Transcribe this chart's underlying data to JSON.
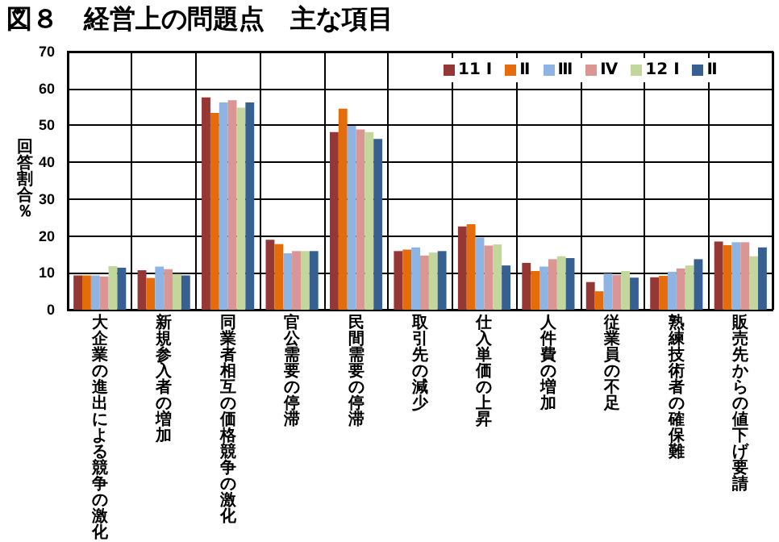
{
  "chart_data": {
    "type": "bar",
    "title": "図８　経営上の問題点　主な項目",
    "ylabel": "回答割合％",
    "categories": [
      "大企業の進出による競争の激化",
      "新規参入者の増加",
      "同業者相互の価格競争の激化",
      "官公需要の停滞",
      "民間需要の停滞",
      "取引先の減少",
      "仕入単価の上昇",
      "人件費の増加",
      "従業員の不足",
      "熟練技術者の確保難",
      "販売先からの値下げ要請"
    ],
    "series": [
      {
        "name": "11 Ⅰ",
        "color": "#953735",
        "values": [
          9.3,
          10.7,
          57.6,
          19,
          48.2,
          15.9,
          22.6,
          12.7,
          7.5,
          8.8,
          18.5
        ]
      },
      {
        "name": "Ⅱ",
        "color": "#e46c0a",
        "values": [
          9.3,
          8.6,
          53.4,
          17.8,
          54.5,
          16.3,
          23.2,
          10.5,
          5,
          9.2,
          17.5
        ]
      },
      {
        "name": "Ⅲ",
        "color": "#8eb4e3",
        "values": [
          9.3,
          11.7,
          56.2,
          15.3,
          49.9,
          16.9,
          19.6,
          11.7,
          9.8,
          10.3,
          18.3
        ]
      },
      {
        "name": "Ⅳ",
        "color": "#d99694",
        "values": [
          9,
          11,
          56.8,
          15.9,
          48.9,
          14.7,
          17.4,
          13.7,
          9.4,
          11.2,
          18.3
        ]
      },
      {
        "name": "12 Ⅰ",
        "color": "#c3d69b",
        "values": [
          11.8,
          9.7,
          54.8,
          15.9,
          48.2,
          15.5,
          17.7,
          14.5,
          10.5,
          12,
          14.5
        ]
      },
      {
        "name": "Ⅱ",
        "color": "#376092",
        "values": [
          11.4,
          9.3,
          56.2,
          15.9,
          46.3,
          15.9,
          12,
          14,
          8.7,
          13.7,
          16.9
        ]
      }
    ],
    "ylim": [
      0,
      70
    ],
    "yticks": [
      0,
      10,
      20,
      30,
      40,
      50,
      60,
      70
    ],
    "grid": true,
    "legend": "top right"
  }
}
